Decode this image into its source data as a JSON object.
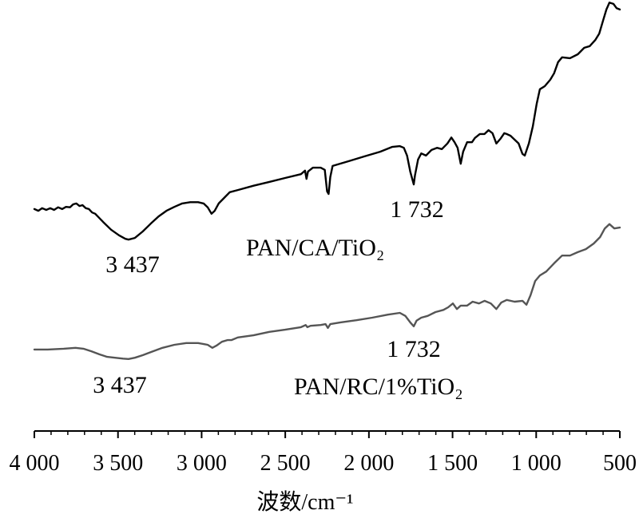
{
  "chart_data": {
    "type": "line",
    "title": "",
    "xlabel": "波数/cm⁻¹",
    "ylabel": "",
    "xlim": [
      4000,
      500
    ],
    "ylim": [
      0,
      100
    ],
    "x_ticks": [
      4000,
      3500,
      3000,
      2500,
      2000,
      1500,
      1000,
      500
    ],
    "x_tick_labels": [
      "4 000",
      "3 500",
      "3 000",
      "2 500",
      "2 000",
      "1 500",
      "1 000",
      "500"
    ],
    "y_axis_visible": false,
    "grid": false,
    "series": [
      {
        "name": "PAN/CA/TiO₂",
        "color": "#000000",
        "x": [
          4000,
          3976,
          3953,
          3929,
          3905,
          3882,
          3858,
          3834,
          3811,
          3787,
          3768,
          3749,
          3730,
          3712,
          3693,
          3674,
          3655,
          3636,
          3589,
          3541,
          3494,
          3456,
          3437,
          3399,
          3352,
          3305,
          3257,
          3210,
          3163,
          3116,
          3068,
          3021,
          2988,
          2964,
          2941,
          2922,
          2898,
          2865,
          2832,
          2784,
          2690,
          2595,
          2501,
          2406,
          2382,
          2373,
          2364,
          2335,
          2288,
          2264,
          2250,
          2241,
          2231,
          2217,
          2122,
          2028,
          1933,
          1862,
          1815,
          1791,
          1772,
          1753,
          1732,
          1725,
          1706,
          1687,
          1659,
          1626,
          1593,
          1564,
          1531,
          1507,
          1488,
          1470,
          1451,
          1437,
          1413,
          1384,
          1366,
          1337,
          1309,
          1285,
          1261,
          1238,
          1214,
          1191,
          1176,
          1153,
          1129,
          1105,
          1082,
          1068,
          1044,
          1020,
          997,
          978,
          949,
          916,
          893,
          869,
          845,
          798,
          751,
          713,
          680,
          647,
          623,
          599,
          580,
          562,
          538,
          519,
          500
        ],
        "y": [
          51.5,
          51.1,
          51.7,
          51.3,
          51.7,
          51.3,
          51.9,
          51.5,
          52.0,
          51.9,
          52.6,
          52.8,
          52.2,
          52.4,
          51.7,
          51.5,
          50.7,
          50.4,
          48.5,
          46.7,
          45.4,
          44.6,
          44.4,
          44.8,
          46.3,
          48.1,
          49.8,
          51.1,
          52.0,
          52.8,
          53.1,
          53.1,
          52.8,
          51.9,
          50.4,
          51.1,
          52.8,
          54.1,
          55.4,
          55.9,
          56.9,
          57.8,
          58.7,
          59.6,
          60.4,
          58.5,
          60.2,
          61.1,
          61.1,
          60.6,
          55.6,
          55.0,
          58.9,
          61.5,
          62.6,
          63.7,
          64.8,
          65.9,
          66.1,
          65.7,
          63.9,
          60.2,
          57.2,
          59.3,
          63.0,
          64.4,
          63.9,
          65.2,
          65.7,
          65.4,
          66.7,
          68.1,
          67.0,
          65.7,
          62.0,
          64.8,
          67.0,
          67.0,
          68.0,
          68.9,
          68.9,
          69.8,
          69.1,
          66.7,
          67.8,
          69.1,
          68.9,
          68.5,
          67.6,
          66.7,
          64.3,
          63.9,
          66.7,
          70.7,
          75.9,
          79.3,
          80.0,
          81.5,
          83.0,
          85.6,
          86.7,
          86.5,
          87.4,
          88.9,
          89.3,
          90.7,
          92.2,
          95.4,
          97.8,
          99.4,
          99.1,
          98.1,
          97.8
        ],
        "peak_labels": [
          {
            "text": "3 437",
            "x": 3437
          },
          {
            "text": "1 732",
            "x": 1732
          }
        ]
      },
      {
        "name": "PAN/RC/1%TiO₂",
        "color": "#555555",
        "x": [
          4000,
          3920,
          3825,
          3754,
          3707,
          3659,
          3612,
          3565,
          3518,
          3470,
          3437,
          3399,
          3352,
          3305,
          3234,
          3163,
          3092,
          3021,
          2964,
          2936,
          2912,
          2879,
          2846,
          2822,
          2784,
          2690,
          2595,
          2501,
          2406,
          2378,
          2368,
          2349,
          2288,
          2259,
          2245,
          2231,
          2170,
          2075,
          1980,
          1886,
          1815,
          1782,
          1753,
          1732,
          1715,
          1687,
          1649,
          1602,
          1555,
          1526,
          1498,
          1474,
          1451,
          1413,
          1380,
          1342,
          1309,
          1271,
          1238,
          1209,
          1176,
          1129,
          1082,
          1058,
          1034,
          1006,
          978,
          940,
          893,
          845,
          798,
          751,
          703,
          656,
          618,
          590,
          562,
          533,
          500
        ],
        "y": [
          18.9,
          18.9,
          19.1,
          19.3,
          19.1,
          18.5,
          17.8,
          17.2,
          17.0,
          16.8,
          16.7,
          17.0,
          17.6,
          18.3,
          19.3,
          20.0,
          20.4,
          20.4,
          20.0,
          19.3,
          19.8,
          20.7,
          21.1,
          21.1,
          21.7,
          22.2,
          23.0,
          23.5,
          24.1,
          24.6,
          24.1,
          24.4,
          24.6,
          24.8,
          23.9,
          24.8,
          25.2,
          25.7,
          26.3,
          27.0,
          27.4,
          26.7,
          25.2,
          24.3,
          25.6,
          26.3,
          26.7,
          27.6,
          28.1,
          28.7,
          29.6,
          28.3,
          29.1,
          29.1,
          30.0,
          29.6,
          30.2,
          29.6,
          28.3,
          29.8,
          30.4,
          30.0,
          30.2,
          29.3,
          31.5,
          34.8,
          36.1,
          37.0,
          38.9,
          40.7,
          40.7,
          41.5,
          42.2,
          43.5,
          45.0,
          47.0,
          48.0,
          47.0,
          47.2
        ],
        "peak_labels": [
          {
            "text": "3 437",
            "x": 3437
          },
          {
            "text": "1 732",
            "x": 1732
          }
        ]
      }
    ]
  }
}
